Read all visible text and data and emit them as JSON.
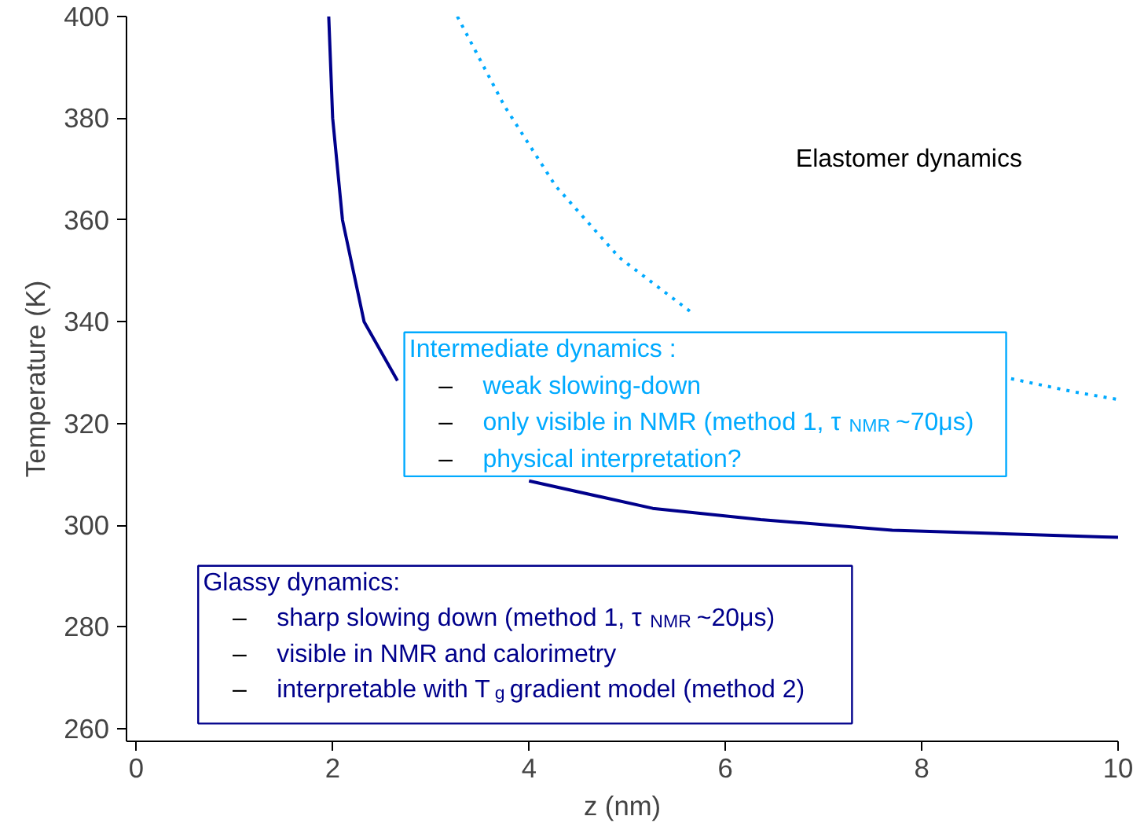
{
  "chart_data": {
    "type": "line",
    "xlabel": "z (nm)",
    "ylabel": "Temperature (K)",
    "xlim": [
      -0.1,
      10
    ],
    "ylim": [
      257.5,
      400
    ],
    "xticks": [
      0,
      2,
      4,
      6,
      8,
      10
    ],
    "yticks": [
      260,
      280,
      300,
      320,
      340,
      360,
      380,
      400
    ],
    "grid": false,
    "series": [
      {
        "color": "#00008b",
        "line_style": "solid",
        "x": [
          1.96,
          2.0,
          2.1,
          2.32,
          2.66,
          3.3,
          4.0,
          5.26,
          6.36,
          7.7,
          9.84,
          10
        ],
        "values": [
          400,
          380,
          360,
          340,
          328.4,
          null,
          308.7,
          303.3,
          301.1,
          299,
          297.7,
          297.6
        ]
      },
      {
        "color": "#00aaff",
        "line_style": "dotted",
        "x": [
          3.27,
          3.75,
          4.27,
          4.92,
          5.65,
          7.0,
          8.91,
          9.55,
          10
        ],
        "values": [
          400,
          382.4,
          366.7,
          352.6,
          341.9,
          null,
          328.8,
          326.2,
          324.7
        ]
      }
    ],
    "annotations": [
      "Elastomer dynamics",
      "Intermediate dynamics :\n– weak slowing-down\n– only visible in NMR (method 1, τ$_{NMR}$~70μs)\n– physical interpretation?",
      "Glassy dynamics:\n– sharp slowing down (method 1, τ$_{NMR}$~20μs)\n– visible in NMR and calorimetry\n– interpretable with T$_{g}$ gradient model (method 2)"
    ]
  }
}
